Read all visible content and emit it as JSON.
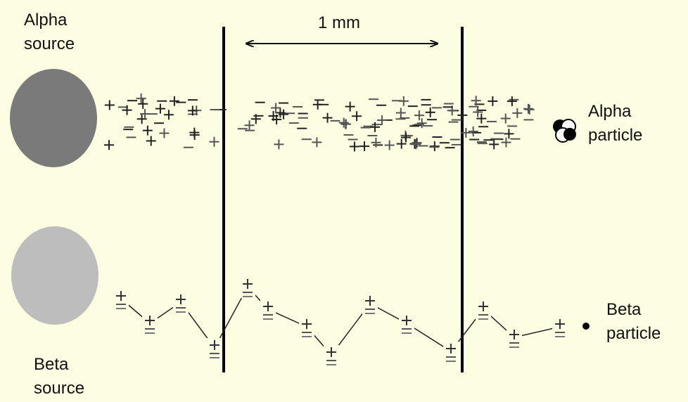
{
  "labels": {
    "alpha_source": "Alpha source",
    "distance": "1 mm",
    "alpha_particle": "Alpha particle",
    "beta_source": "Beta source",
    "beta_particle": "Beta particle"
  }
}
